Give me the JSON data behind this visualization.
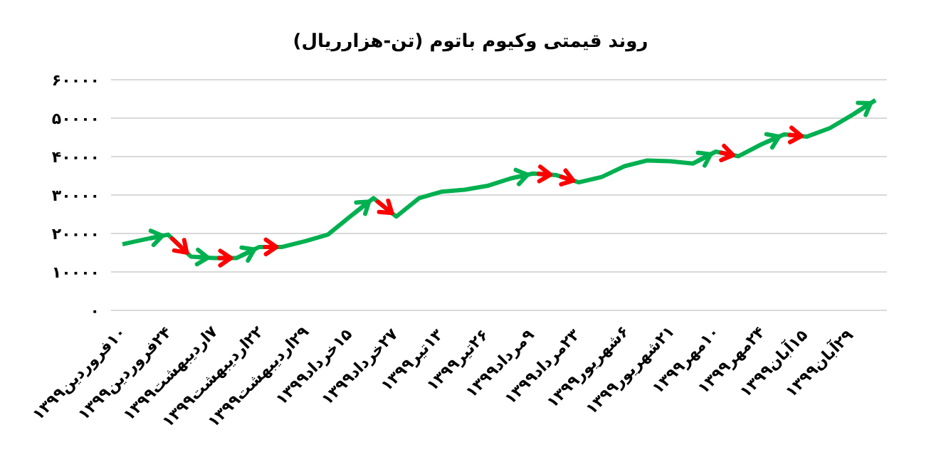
{
  "chart_data": {
    "type": "line",
    "title": "روند قیمتی وکیوم باتوم (تن-هزارریال)",
    "categories": [
      "۱۰فروردین۱۳۹۹",
      null,
      "۲۴فروردین۱۳۹۹",
      null,
      "۷اردیبهشت۱۳۹۹",
      null,
      "۲۲اردیبهشت۱۳۹۹",
      null,
      "۲۹اردیبهشت۱۳۹۹",
      null,
      "۱۵خرداد۱۳۹۹",
      null,
      "۲۷خرداد۱۳۹۹",
      null,
      "۱۳تیر۱۳۹۹",
      null,
      "۲۶تیر۱۳۹۹",
      null,
      "۹مرداد۱۳۹۹",
      null,
      "۲۳مرداد۱۳۹۹",
      null,
      "۶شهریور۱۳۹۹",
      null,
      "۲۱شهریور۱۳۹۹",
      null,
      "۱۰مهر۱۳۹۹",
      null,
      "۲۴مهر۱۳۹۹",
      null,
      "۱۵آبان۱۳۹۹",
      null,
      "۲۹آبان۱۳۹۹",
      null
    ],
    "series": [
      {
        "color": "#00b050",
        "values": [
          17200,
          18500,
          19700,
          14000,
          13600,
          13600,
          16500,
          16500,
          18000,
          19700,
          24500,
          29200,
          24400,
          29200,
          30900,
          31400,
          32400,
          34300,
          35600,
          35200,
          33300,
          34700,
          37500,
          39000,
          38800,
          38200,
          41300,
          40100,
          43200,
          45800,
          45200,
          47400,
          50900,
          54700
        ],
        "colors": [
          null,
          null,
          "#00b050",
          "#ff0000",
          "#00b050",
          "#ff0000",
          "#00b050",
          "#ff0000",
          null,
          null,
          null,
          "#00b050",
          "#ff0000",
          null,
          null,
          null,
          null,
          null,
          "#00b050",
          "#ff0000",
          "#ff0000",
          null,
          null,
          null,
          null,
          null,
          "#00b050",
          "#ff0000",
          null,
          "#00b050",
          "#ff0000",
          null,
          null,
          "#00b050"
        ]
      }
    ],
    "ylim": [
      0,
      60000
    ],
    "yticks": [
      {
        "value": 0,
        "label": "۰"
      },
      {
        "value": 10000,
        "label": "۱۰۰۰۰"
      },
      {
        "value": 20000,
        "label": "۲۰۰۰۰"
      },
      {
        "value": 30000,
        "label": "۳۰۰۰۰"
      },
      {
        "value": 40000,
        "label": "۴۰۰۰۰"
      },
      {
        "value": 50000,
        "label": "۵۰۰۰۰"
      },
      {
        "value": 60000,
        "label": "۶۰۰۰۰"
      }
    ],
    "grid": "y",
    "legend": false,
    "marker": "none",
    "line_style": "solid"
  }
}
